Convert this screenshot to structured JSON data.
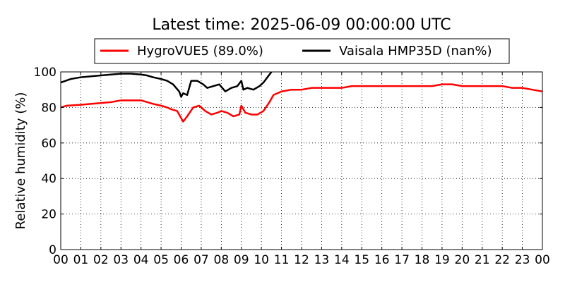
{
  "chart_data": {
    "type": "line",
    "title": "Latest time: 2025-06-09 00:00:00 UTC",
    "xlabel": "",
    "ylabel": "Relative humidity (%)",
    "xlim": [
      0,
      24
    ],
    "ylim": [
      0,
      100
    ],
    "grid": true,
    "legend_position": "top",
    "x_tick_labels": [
      "00",
      "01",
      "02",
      "03",
      "04",
      "05",
      "06",
      "07",
      "08",
      "09",
      "10",
      "11",
      "12",
      "13",
      "14",
      "15",
      "16",
      "17",
      "18",
      "19",
      "20",
      "21",
      "22",
      "23",
      "00"
    ],
    "y_tick_labels": [
      "0",
      "20",
      "40",
      "60",
      "80",
      "100"
    ],
    "series": [
      {
        "name": "HygroVUE5 (89.0%)",
        "color": "#ff0000",
        "x": [
          0,
          0.3,
          1,
          1.5,
          2,
          2.5,
          3,
          3.5,
          4,
          4.3,
          4.6,
          5,
          5.3,
          5.5,
          5.8,
          6.0,
          6.1,
          6.3,
          6.6,
          6.9,
          7.2,
          7.5,
          7.8,
          8.0,
          8.3,
          8.6,
          8.9,
          9.0,
          9.2,
          9.5,
          9.8,
          10.1,
          10.4,
          10.6,
          11,
          11.5,
          12,
          12.5,
          13,
          13.5,
          14,
          14.5,
          15,
          16,
          17,
          18,
          18.5,
          19,
          19.5,
          20,
          20.5,
          21,
          21.5,
          22,
          22.5,
          23,
          23.5,
          24
        ],
        "y": [
          80,
          81,
          81.5,
          82,
          82.5,
          83,
          84,
          84,
          84,
          83,
          82,
          81,
          80,
          79,
          78,
          74,
          72,
          75,
          80,
          81,
          78,
          76,
          77,
          78,
          77,
          75,
          76,
          81,
          77,
          76,
          76,
          78,
          83,
          87,
          89,
          90,
          90,
          91,
          91,
          91,
          91,
          92,
          92,
          92,
          92,
          92,
          92,
          93,
          93,
          92,
          92,
          92,
          92,
          92,
          91,
          91,
          90,
          89
        ]
      },
      {
        "name": "Vaisala HMP35D (nan%)",
        "color": "#000000",
        "x": [
          0,
          0.5,
          1,
          1.5,
          2,
          2.5,
          3,
          3.5,
          4,
          4.3,
          4.6,
          5,
          5.3,
          5.6,
          5.9,
          6.0,
          6.1,
          6.3,
          6.5,
          6.8,
          7.1,
          7.3,
          7.6,
          7.9,
          8.2,
          8.5,
          8.8,
          9.0,
          9.1,
          9.3,
          9.6,
          9.9,
          10.1,
          10.3,
          10.5
        ],
        "y": [
          94,
          96,
          97,
          97.5,
          98,
          98.5,
          99,
          99,
          98.5,
          98,
          97,
          96,
          95,
          93,
          89,
          86,
          88,
          87,
          95,
          95,
          93,
          91,
          92,
          93,
          89,
          91,
          92,
          95,
          90,
          91,
          90,
          92,
          94,
          97,
          100
        ]
      }
    ]
  }
}
